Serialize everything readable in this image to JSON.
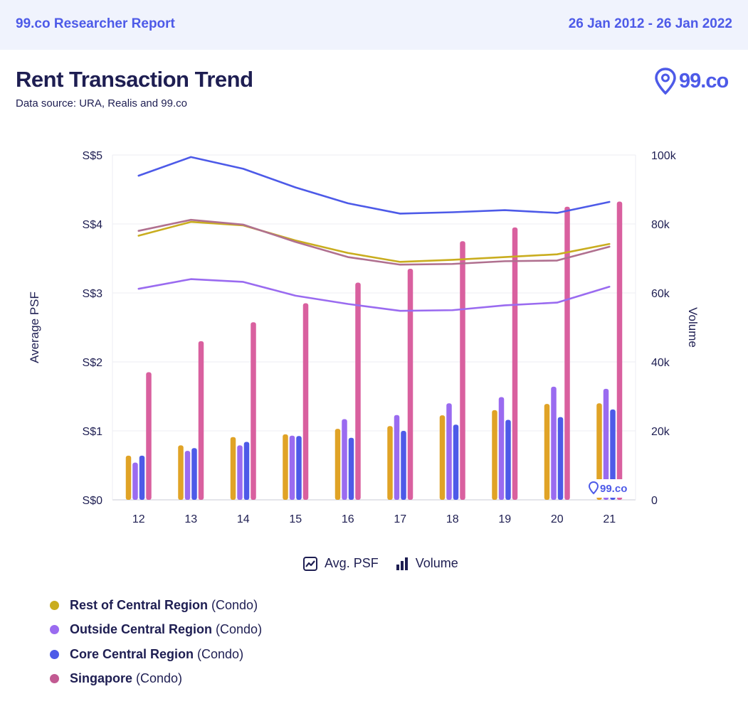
{
  "header": {
    "brand": "99.co Researcher Report",
    "date_range": "26 Jan 2012 - 26 Jan 2022"
  },
  "title": "Rent Transaction Trend",
  "source": "Data source: URA, Realis and 99.co",
  "logo_text": "99.co",
  "watermark_text": "99.co",
  "legend_type": {
    "line_label": "Avg. PSF",
    "bar_label": "Volume"
  },
  "colors": {
    "rest_central": "#c9ad1f",
    "rest_central_bar": "#e0a326",
    "outside_central": "#9a6bf0",
    "core_central": "#4d5ae8",
    "singapore": "#b0708f",
    "singapore_bar": "#d9609f",
    "accent": "#4d5ae8",
    "text": "#1e1e52"
  },
  "chart_data": {
    "type": "bar",
    "categories": [
      "12",
      "13",
      "14",
      "15",
      "16",
      "17",
      "18",
      "19",
      "20",
      "21"
    ],
    "ylabel": "Average PSF",
    "y2label": "Volume",
    "ylim": [
      0,
      5
    ],
    "y2lim": [
      0,
      100000
    ],
    "yticks": [
      "S$0",
      "S$1",
      "S$2",
      "S$3",
      "S$4",
      "S$5"
    ],
    "y2ticks": [
      "0",
      "20k",
      "40k",
      "60k",
      "80k",
      "100k"
    ],
    "grid": true,
    "line_series": [
      {
        "name": "Core Central Region (Condo)",
        "key": "core_central",
        "values": [
          4.7,
          4.97,
          4.8,
          4.53,
          4.3,
          4.15,
          4.17,
          4.2,
          4.16,
          4.32
        ]
      },
      {
        "name": "Rest of Central Region (Condo)",
        "key": "rest_central",
        "values": [
          3.83,
          4.03,
          3.98,
          3.76,
          3.58,
          3.45,
          3.48,
          3.52,
          3.56,
          3.71
        ]
      },
      {
        "name": "Singapore (Condo)",
        "key": "singapore",
        "values": [
          3.9,
          4.06,
          3.99,
          3.74,
          3.52,
          3.41,
          3.42,
          3.46,
          3.47,
          3.67
        ]
      },
      {
        "name": "Outside Central Region (Condo)",
        "key": "outside_central",
        "values": [
          3.06,
          3.2,
          3.16,
          2.96,
          2.84,
          2.74,
          2.75,
          2.82,
          2.86,
          3.09
        ]
      }
    ],
    "bar_series": [
      {
        "name": "Rest of Central Region (Condo)",
        "key": "rest_central_bar",
        "values": [
          12800,
          15800,
          18200,
          19000,
          20600,
          21400,
          24500,
          26000,
          27800,
          28000
        ]
      },
      {
        "name": "Outside Central Region (Condo)",
        "key": "outside_central",
        "values": [
          10800,
          14200,
          15800,
          18600,
          23400,
          24600,
          28000,
          29800,
          32800,
          32200
        ]
      },
      {
        "name": "Core Central Region (Condo)",
        "key": "core_central",
        "values": [
          12800,
          15000,
          16800,
          18500,
          18000,
          20000,
          21800,
          23200,
          24000,
          26200
        ]
      },
      {
        "name": "Singapore (Condo)",
        "key": "singapore_bar",
        "values": [
          37000,
          46000,
          51500,
          57000,
          63000,
          67000,
          75000,
          79000,
          85000,
          86500
        ]
      }
    ]
  },
  "series_legend": [
    {
      "name": "Rest of Central Region",
      "suffix": "(Condo)",
      "color": "#c9ad1f"
    },
    {
      "name": "Outside Central Region",
      "suffix": "(Condo)",
      "color": "#9a6bf0"
    },
    {
      "name": "Core Central Region",
      "suffix": "(Condo)",
      "color": "#4d5ae8"
    },
    {
      "name": "Singapore",
      "suffix": "(Condo)",
      "color": "#c25a92"
    }
  ]
}
